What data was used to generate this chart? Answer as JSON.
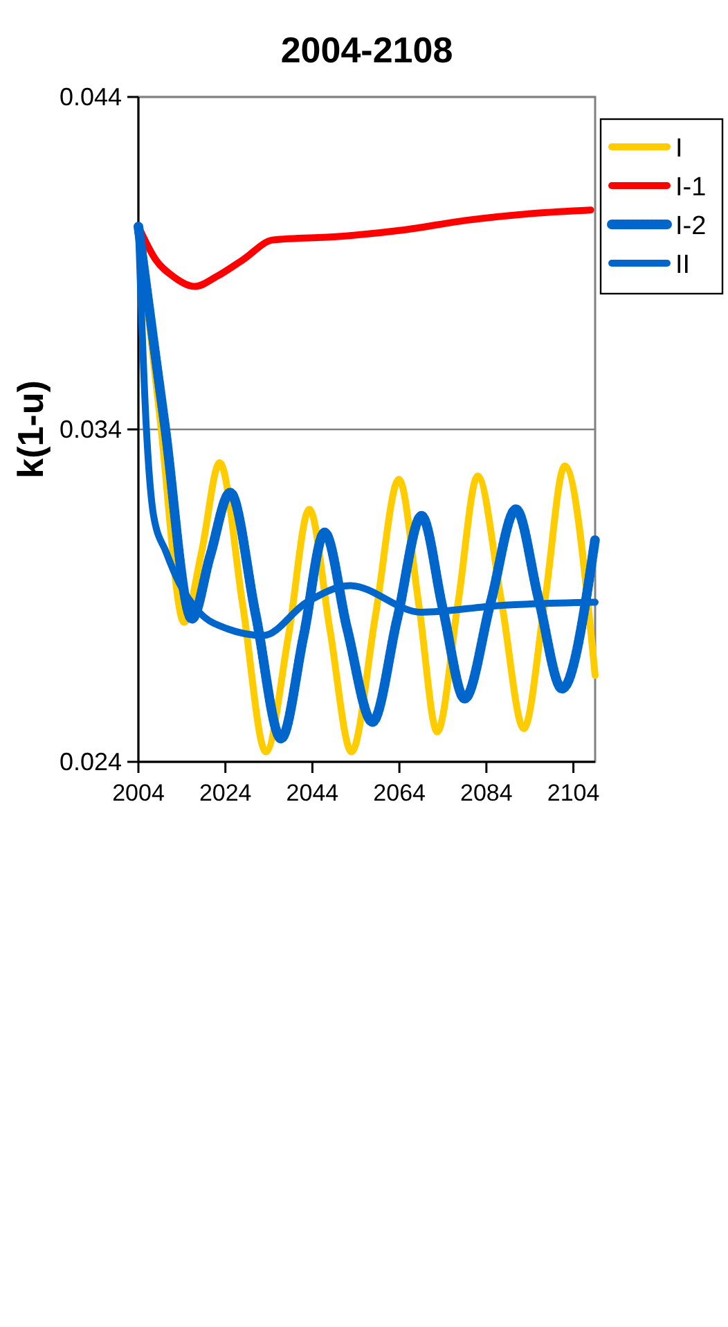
{
  "chart_data": {
    "type": "line",
    "title": "2004-2108",
    "ylabel": "k(1-u)",
    "xlim": [
      2004,
      2109
    ],
    "xticks": [
      2004,
      2024,
      2044,
      2064,
      2084,
      2104
    ],
    "ylim": [
      0.024,
      0.044
    ],
    "yticks": [
      0.044,
      0.034,
      0.024
    ],
    "grid": "y",
    "legend": "right",
    "marker": "none",
    "series": [
      {
        "name": "I",
        "color": "#ffcc00",
        "line_style": "solid",
        "x": [
          2004,
          2009,
          2014.5,
          2018.5,
          2022.7,
          2028,
          2033.3,
          2038.5,
          2043.3,
          2048,
          2053,
          2058.5,
          2063.9,
          2068.5,
          2072.7,
          2077.5,
          2082,
          2087.5,
          2092.6,
          2097.5,
          2102,
          2109
        ],
        "values": [
          0.0401,
          0.0343,
          0.0282,
          0.0303,
          0.033,
          0.0287,
          0.0243,
          0.0278,
          0.0316,
          0.028,
          0.0243,
          0.0284,
          0.0325,
          0.0287,
          0.0249,
          0.0288,
          0.0326,
          0.0288,
          0.025,
          0.0289,
          0.0329,
          0.0266
        ]
      },
      {
        "name": "I-1",
        "color": "#ff0000",
        "line_style": "solid",
        "x": [
          2004,
          2008,
          2012,
          2017,
          2022,
          2028,
          2035,
          2050,
          2065,
          2080,
          2095,
          2108
        ],
        "values": [
          0.0401,
          0.0391,
          0.0386,
          0.0383,
          0.0386,
          0.0391,
          0.0397,
          0.0398,
          0.04,
          0.0403,
          0.0405,
          0.0406
        ]
      },
      {
        "name": "I-2",
        "color": "#0066cc",
        "line_style": "dotted",
        "x": [
          2004,
          2010,
          2016.3,
          2020.5,
          2025.1,
          2031,
          2036.8,
          2042,
          2046.8,
          2052,
          2057.8,
          2063.5,
          2069.1,
          2074,
          2079,
          2085,
          2090.8,
          2096,
          2101.4,
          2109
        ],
        "values": [
          0.0401,
          0.0342,
          0.0283,
          0.0302,
          0.0321,
          0.0284,
          0.0247,
          0.0278,
          0.0309,
          0.028,
          0.0252,
          0.0283,
          0.0314,
          0.0286,
          0.0259,
          0.0288,
          0.0316,
          0.0289,
          0.0262,
          0.0307
        ]
      },
      {
        "name": "II",
        "color": "#0066cc",
        "line_style": "solid",
        "x": [
          2004,
          2005.8,
          2007.5,
          2010.4,
          2013.3,
          2018,
          2024.5,
          2032.7,
          2042.7,
          2052.7,
          2069,
          2086.7,
          2109
        ],
        "values": [
          0.0401,
          0.0341,
          0.0314,
          0.0303,
          0.0294,
          0.0285,
          0.028,
          0.0278,
          0.0288,
          0.0293,
          0.0285,
          0.0287,
          0.0288
        ]
      }
    ]
  }
}
